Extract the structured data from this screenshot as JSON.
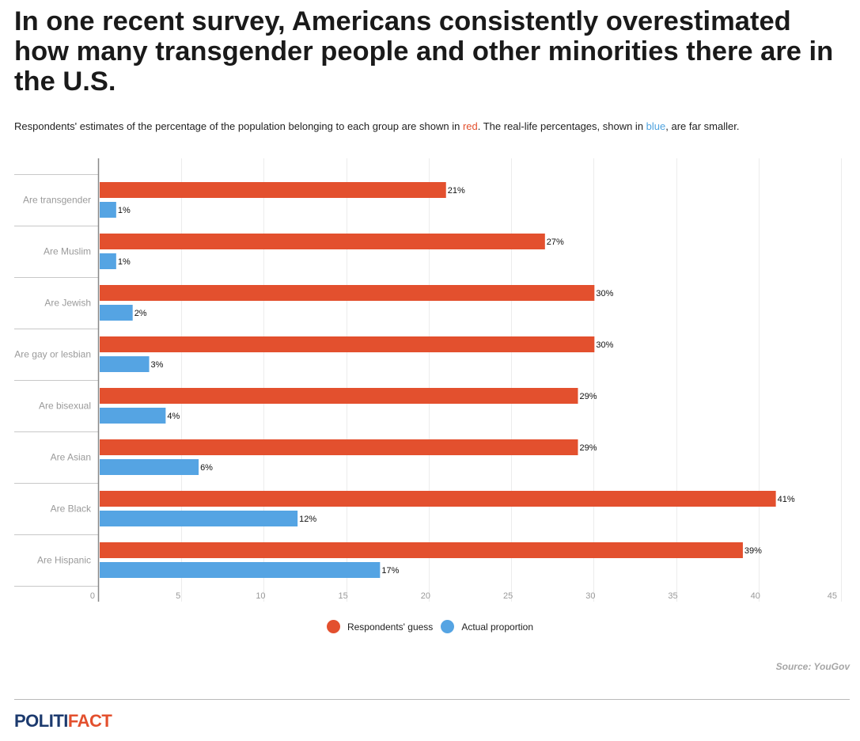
{
  "header": {
    "title": "In one recent survey, Americans consistently overestimated how many transgender people and other minorities there are in the U.S.",
    "subtitle_part1": "Respondents' estimates of the percentage of the population belonging to each group are shown in ",
    "subtitle_red": "red",
    "subtitle_part2": ". The real-life percentages, shown in ",
    "subtitle_blue": "blue",
    "subtitle_part3": ", are far smaller."
  },
  "chart_data": {
    "type": "bar",
    "orientation": "horizontal",
    "categories": [
      "Are transgender",
      "Are Muslim",
      "Are Jewish",
      "Are gay or lesbian",
      "Are bisexual",
      "Are Asian",
      "Are Black",
      "Are Hispanic"
    ],
    "series": [
      {
        "name": "Respondents' guess",
        "color": "#e3502e",
        "values": [
          21,
          27,
          30,
          30,
          29,
          29,
          41,
          39
        ]
      },
      {
        "name": "Actual proportion",
        "color": "#55a4e3",
        "values": [
          1,
          1,
          2,
          3,
          4,
          6,
          12,
          17
        ]
      }
    ],
    "value_suffix": "%",
    "xlim": [
      0,
      45
    ],
    "xticks": [
      0,
      5,
      10,
      15,
      20,
      25,
      30,
      35,
      40,
      45
    ],
    "grid": true,
    "legend_position": "bottom"
  },
  "source": "Source: YouGov",
  "logo": {
    "part1": "POLITI",
    "part2": "FACT"
  }
}
